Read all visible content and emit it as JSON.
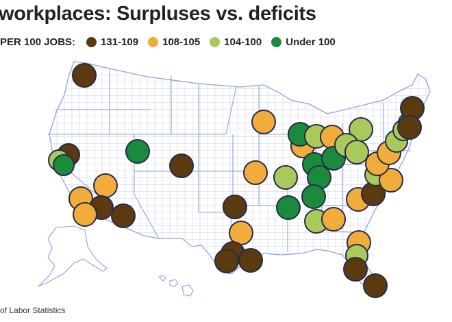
{
  "title": "workplaces: Surpluses vs. deficits",
  "legend": {
    "label": "PER 100 JOBS:",
    "items": [
      {
        "label": "131-109",
        "color": "#5c3a10"
      },
      {
        "label": "108-105",
        "color": "#f0ad3c"
      },
      {
        "label": "104-100",
        "color": "#a9c95b"
      },
      {
        "label": "Under 100",
        "color": "#1a8a3c"
      }
    ]
  },
  "source": "of Labor Statistics",
  "colors": {
    "land": "#ffffff",
    "state_border": "#8fa0dc",
    "county_border": "#c5cdee",
    "bubble_outline": "#262a4a"
  }
}
